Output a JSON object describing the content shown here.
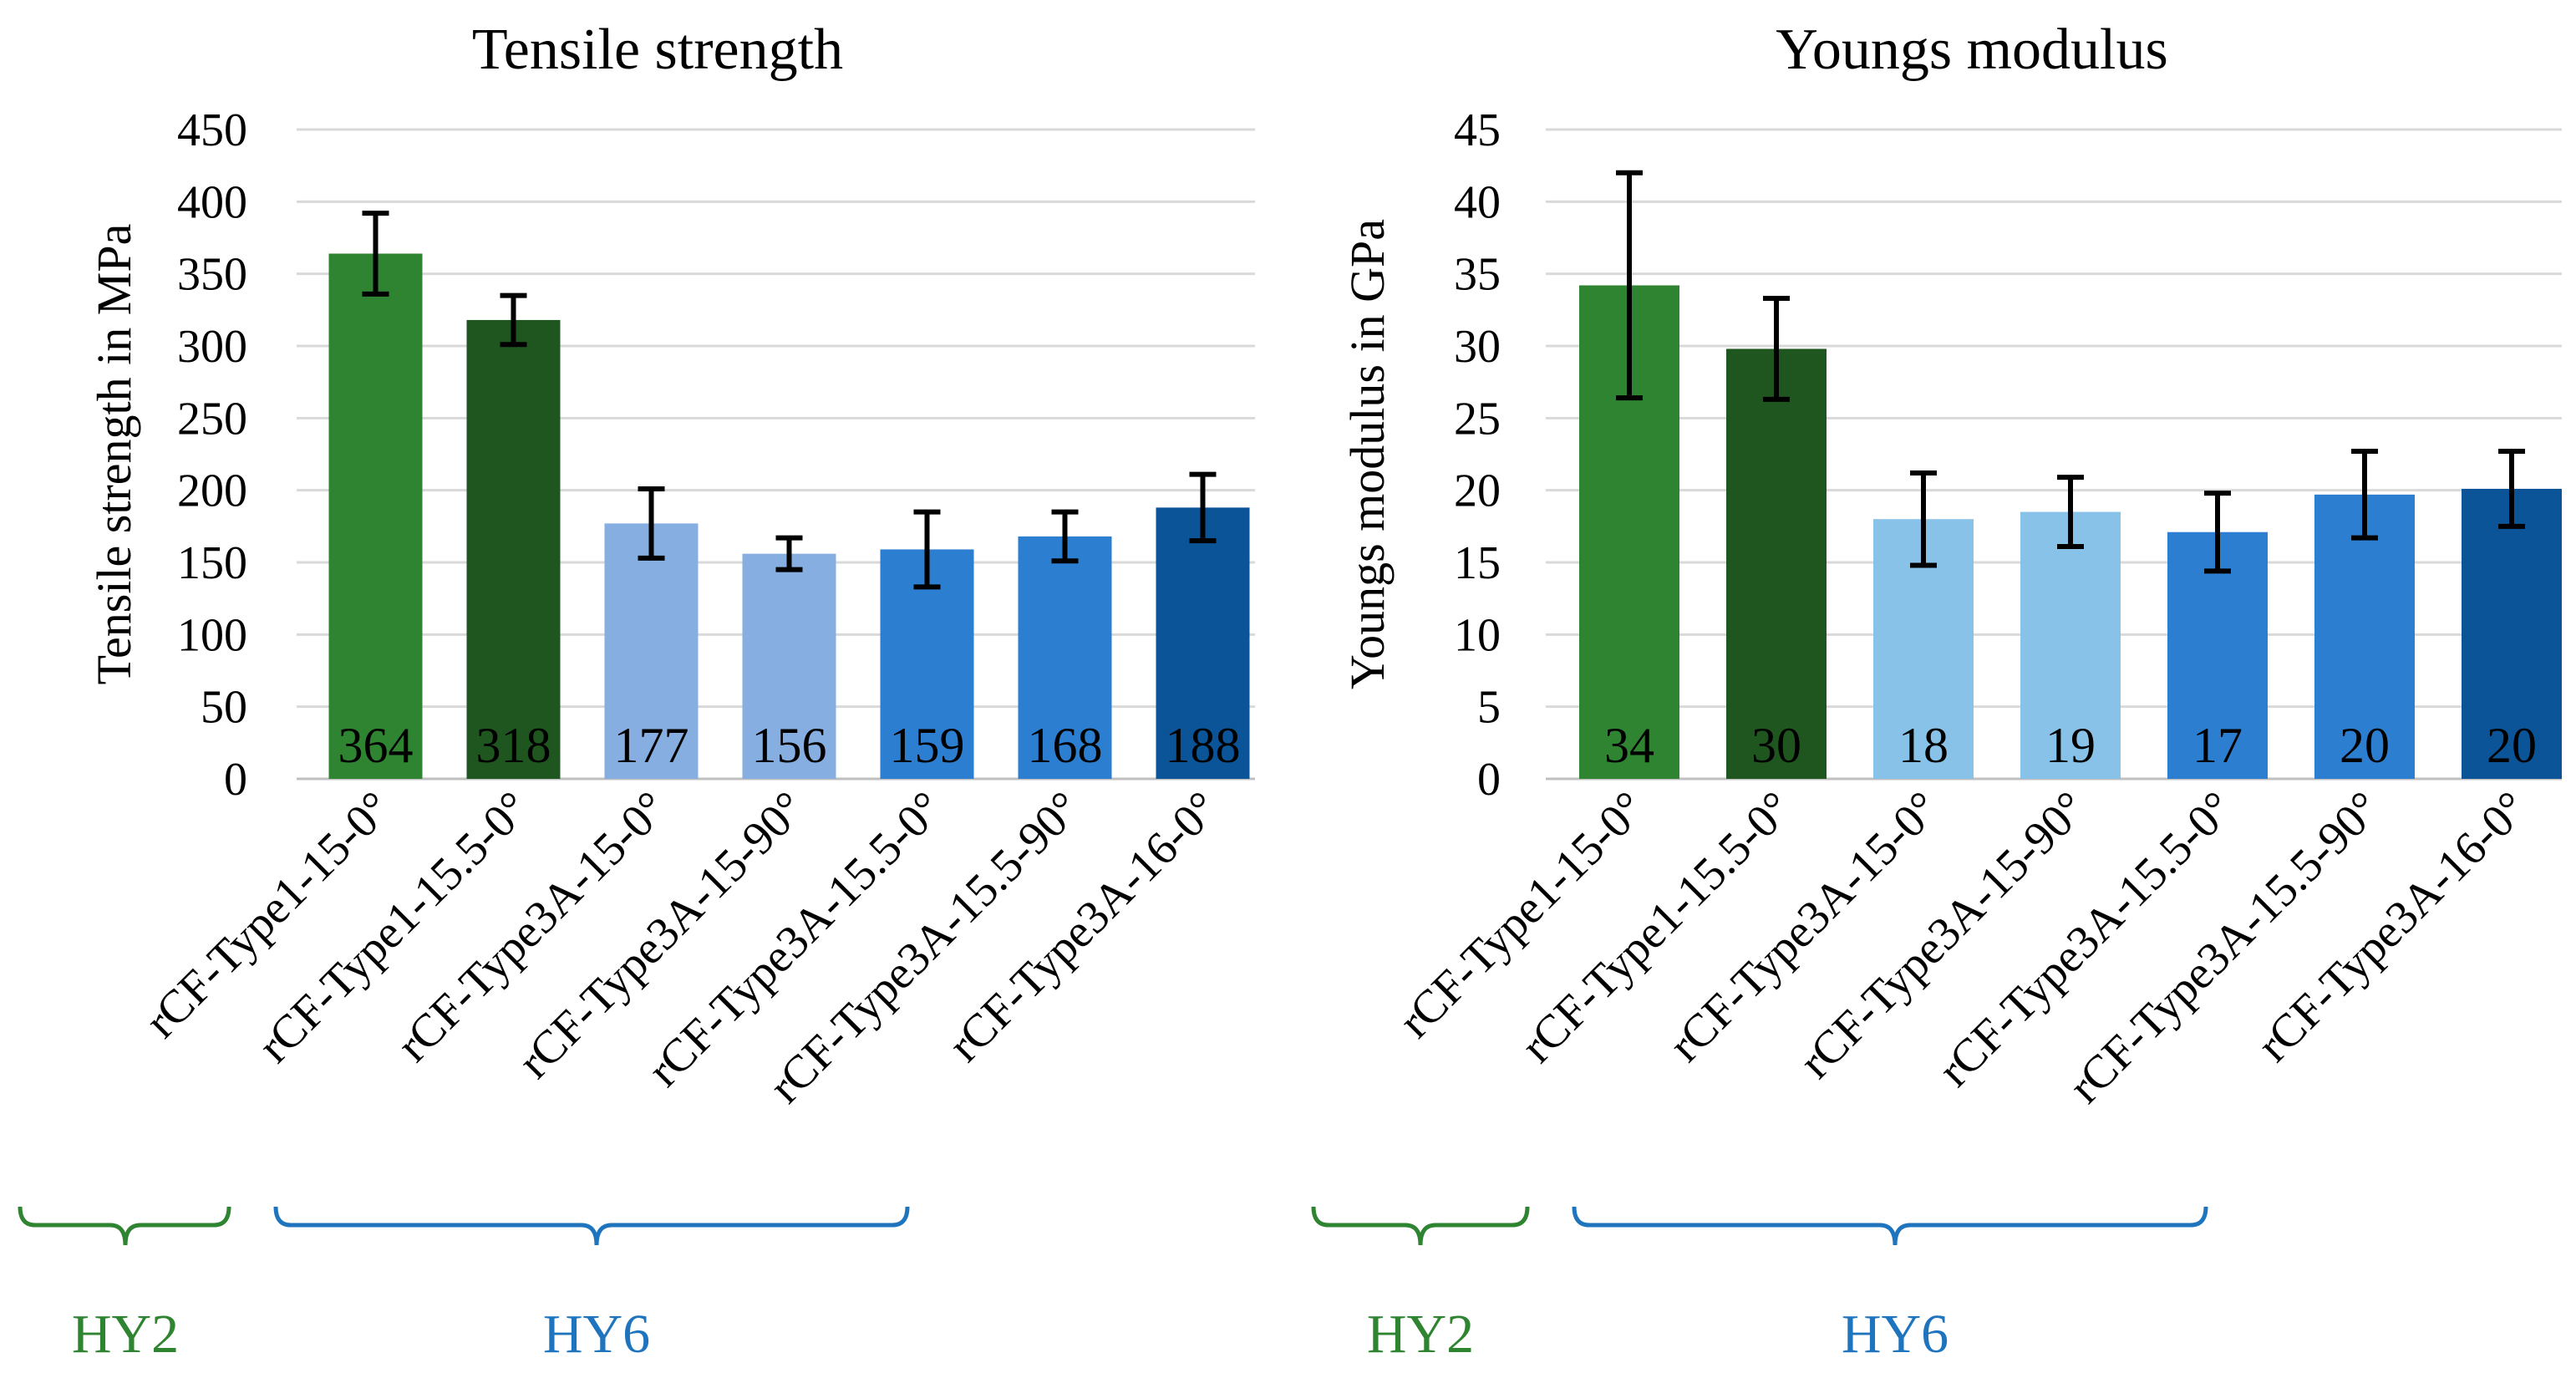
{
  "chart_data": [
    {
      "type": "bar",
      "title": "Tensile strength",
      "ylabel": "Tensile strength in MPa",
      "xlabel": "",
      "ylim": [
        0,
        450
      ],
      "yticks": [
        "0",
        "50",
        "100",
        "150",
        "200",
        "250",
        "300",
        "350",
        "400",
        "450"
      ],
      "grid": true,
      "categories": [
        "rCF-Type1-15-0°",
        "rCF-Type1-15.5-0°",
        "rCF-Type3A-15-0°",
        "rCF-Type3A-15-90°",
        "rCF-Type3A-15.5-0°",
        "rCF-Type3A-15.5-90°",
        "rCF-Type3A-16-0°"
      ],
      "values": [
        364,
        318,
        177,
        156,
        159,
        168,
        188
      ],
      "error": [
        28,
        17,
        24,
        11,
        26,
        17,
        23
      ],
      "labels": [
        "364",
        "318",
        "177",
        "156",
        "159",
        "168",
        "188"
      ],
      "colors": [
        "#2e8431",
        "#1f5620",
        "#86aee0",
        "#86aee0",
        "#2c7ed1",
        "#2c7ed1",
        "#0b5498"
      ],
      "groups": [
        {
          "label": "HY2",
          "color": "#2e8431",
          "from": 0,
          "to": 0
        },
        {
          "label": "HY6",
          "color": "#1f75bd",
          "from": 1,
          "to": 4
        }
      ]
    },
    {
      "type": "bar",
      "title": "Youngs modulus",
      "ylabel": "Youngs modulus in GPa",
      "xlabel": "",
      "ylim": [
        0,
        45
      ],
      "yticks": [
        "0",
        "5",
        "10",
        "15",
        "20",
        "25",
        "30",
        "35",
        "40",
        "45"
      ],
      "grid": true,
      "categories": [
        "rCF-Type1-15-0°",
        "rCF-Type1-15.5-0°",
        "rCF-Type3A-15-0°",
        "rCF-Type3A-15-90°",
        "rCF-Type3A-15.5-0°",
        "rCF-Type3A-15.5-90°",
        "rCF-Type3A-16-0°"
      ],
      "values": [
        34.2,
        29.8,
        18.0,
        18.5,
        17.1,
        19.7,
        20.1
      ],
      "error": [
        7.8,
        3.5,
        3.2,
        2.4,
        2.7,
        3.0,
        2.6
      ],
      "labels": [
        "34",
        "30",
        "18",
        "19",
        "17",
        "20",
        "20"
      ],
      "colors": [
        "#2e8431",
        "#1f5620",
        "#88c2e8",
        "#88c2e8",
        "#2c7ed1",
        "#2c7ed1",
        "#0b5498"
      ],
      "groups": [
        {
          "label": "HY2",
          "color": "#2e8431",
          "from": 0,
          "to": 0
        },
        {
          "label": "HY6",
          "color": "#1f75bd",
          "from": 1,
          "to": 4
        }
      ]
    }
  ]
}
